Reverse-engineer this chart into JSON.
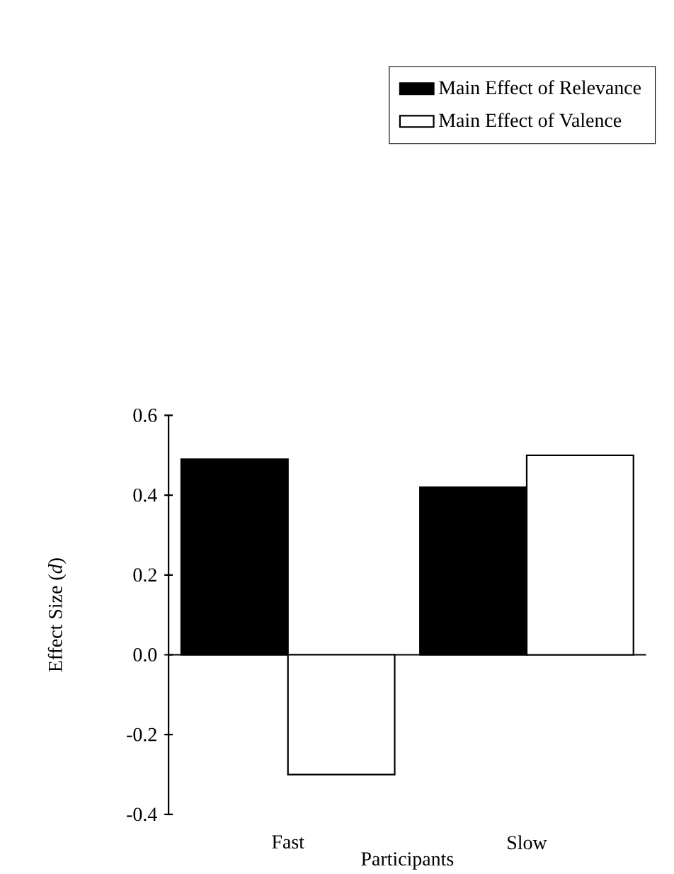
{
  "chart_data": {
    "type": "bar",
    "xlabel": "Participants",
    "ylabel": "Effect Size (*d*)",
    "categories": [
      "Fast",
      "Slow"
    ],
    "series": [
      {
        "name": "Main Effect of Relevance",
        "color": "#000000",
        "values": [
          0.49,
          0.42
        ]
      },
      {
        "name": "Main Effect of Valence",
        "color": "#ffffff",
        "values": [
          -0.3,
          0.5
        ]
      }
    ],
    "ylim": [
      -0.4,
      0.6
    ],
    "yticks": [
      {
        "value": -0.4,
        "label": "-0.4"
      },
      {
        "value": -0.2,
        "label": "-0.2"
      },
      {
        "value": 0,
        "label": "0.0"
      },
      {
        "value": 0.2,
        "label": "0.2"
      },
      {
        "value": 0.4,
        "label": "0.4"
      },
      {
        "value": 0.6,
        "label": "0.6"
      }
    ],
    "legend": "top right"
  }
}
